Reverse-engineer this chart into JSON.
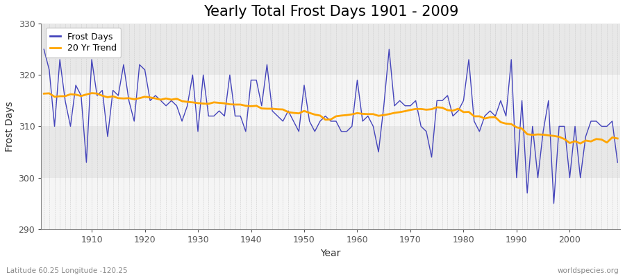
{
  "title": "Yearly Total Frost Days 1901 - 2009",
  "xlabel": "Year",
  "ylabel": "Frost Days",
  "subtitle": "Latitude 60.25 Longitude -120.25",
  "watermark": "worldspecies.org",
  "years": [
    1901,
    1902,
    1903,
    1904,
    1905,
    1906,
    1907,
    1908,
    1909,
    1910,
    1911,
    1912,
    1913,
    1914,
    1915,
    1916,
    1917,
    1918,
    1919,
    1920,
    1921,
    1922,
    1923,
    1924,
    1925,
    1926,
    1927,
    1928,
    1929,
    1930,
    1931,
    1932,
    1933,
    1934,
    1935,
    1936,
    1937,
    1938,
    1939,
    1940,
    1941,
    1942,
    1943,
    1944,
    1945,
    1946,
    1947,
    1948,
    1949,
    1950,
    1951,
    1952,
    1953,
    1954,
    1955,
    1956,
    1957,
    1958,
    1959,
    1960,
    1961,
    1962,
    1963,
    1964,
    1965,
    1966,
    1967,
    1968,
    1969,
    1970,
    1971,
    1972,
    1973,
    1974,
    1975,
    1976,
    1977,
    1978,
    1979,
    1980,
    1981,
    1982,
    1983,
    1984,
    1985,
    1986,
    1987,
    1988,
    1989,
    1990,
    1991,
    1992,
    1993,
    1994,
    1995,
    1996,
    1997,
    1998,
    1999,
    2000,
    2001,
    2002,
    2003,
    2004,
    2005,
    2006,
    2007,
    2008,
    2009
  ],
  "frost_days": [
    325,
    321,
    310,
    323,
    315,
    310,
    318,
    316,
    303,
    323,
    316,
    317,
    308,
    317,
    316,
    322,
    315,
    311,
    322,
    321,
    315,
    316,
    315,
    314,
    315,
    314,
    311,
    314,
    320,
    309,
    320,
    312,
    312,
    313,
    312,
    320,
    312,
    312,
    309,
    319,
    319,
    314,
    322,
    313,
    312,
    311,
    313,
    311,
    309,
    318,
    311,
    309,
    311,
    312,
    311,
    311,
    309,
    309,
    310,
    319,
    311,
    312,
    310,
    305,
    314,
    325,
    314,
    315,
    314,
    314,
    315,
    310,
    309,
    304,
    315,
    315,
    316,
    312,
    313,
    315,
    323,
    311,
    309,
    312,
    313,
    312,
    315,
    312,
    323,
    300,
    315,
    297,
    310,
    300,
    309,
    315,
    295,
    310,
    310,
    300,
    310,
    300,
    308,
    311,
    311,
    310,
    310,
    311,
    303
  ],
  "line_color": "#4444bb",
  "trend_color": "#ffa500",
  "bg_color": "#f0f0f0",
  "band_colors": [
    "#f5f5f5",
    "#e8e8e8"
  ],
  "ylim": [
    290,
    330
  ],
  "yticks": [
    290,
    300,
    310,
    320,
    330
  ],
  "xlim_start": 1901,
  "xlim_end": 2009,
  "title_fontsize": 15,
  "axis_label_fontsize": 10,
  "tick_fontsize": 9,
  "legend_fontsize": 9
}
